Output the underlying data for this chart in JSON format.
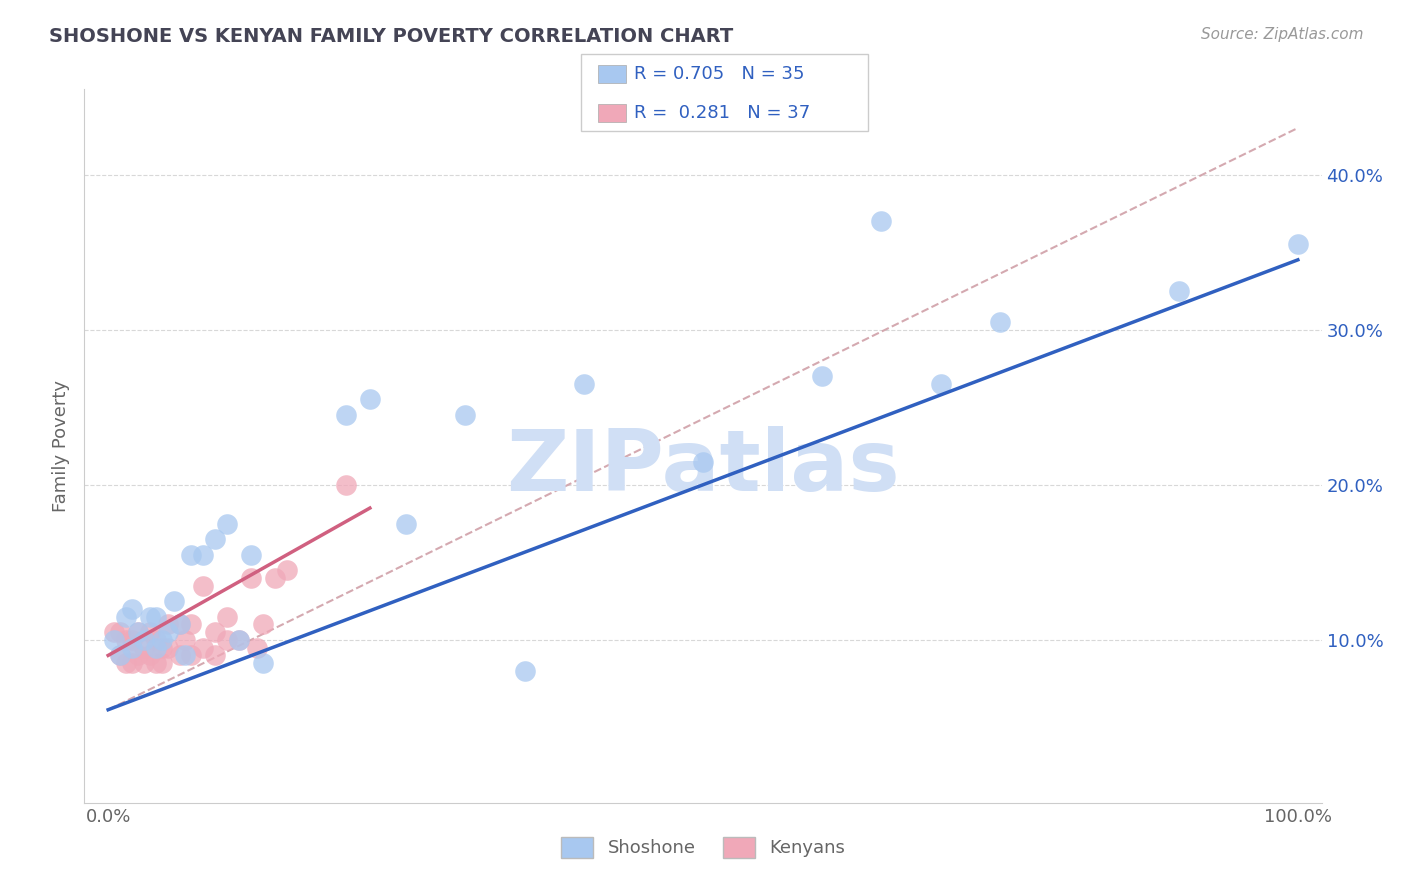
{
  "title": "SHOSHONE VS KENYAN FAMILY POVERTY CORRELATION CHART",
  "source": "Source: ZipAtlas.com",
  "ylabel": "Family Poverty",
  "y_ticks": [
    0.1,
    0.2,
    0.3,
    0.4
  ],
  "y_tick_labels": [
    "10.0%",
    "20.0%",
    "30.0%",
    "40.0%"
  ],
  "x_ticks": [
    0.0,
    1.0
  ],
  "x_tick_labels": [
    "0.0%",
    "100.0%"
  ],
  "xlim": [
    -0.02,
    1.02
  ],
  "ylim": [
    -0.005,
    0.455
  ],
  "shoshone_R": 0.705,
  "shoshone_N": 35,
  "kenyan_R": 0.281,
  "kenyan_N": 37,
  "shoshone_color": "#a8c8f0",
  "kenyan_color": "#f0a8b8",
  "shoshone_line_color": "#3060c0",
  "kenyan_line_color": "#d06080",
  "dashed_line_color": "#d0a0a8",
  "watermark": "ZIPatlas",
  "watermark_color": "#d0dff5",
  "grid_color": "#d8d8d8",
  "shoshone_x": [
    0.005,
    0.01,
    0.015,
    0.02,
    0.02,
    0.025,
    0.03,
    0.035,
    0.04,
    0.04,
    0.045,
    0.05,
    0.055,
    0.06,
    0.065,
    0.07,
    0.08,
    0.09,
    0.1,
    0.11,
    0.12,
    0.13,
    0.2,
    0.22,
    0.25,
    0.3,
    0.35,
    0.4,
    0.5,
    0.6,
    0.65,
    0.7,
    0.75,
    0.9,
    1.0
  ],
  "shoshone_y": [
    0.1,
    0.09,
    0.115,
    0.12,
    0.095,
    0.105,
    0.1,
    0.115,
    0.095,
    0.115,
    0.1,
    0.105,
    0.125,
    0.11,
    0.09,
    0.155,
    0.155,
    0.165,
    0.175,
    0.1,
    0.155,
    0.085,
    0.245,
    0.255,
    0.175,
    0.245,
    0.08,
    0.265,
    0.215,
    0.27,
    0.37,
    0.265,
    0.305,
    0.325,
    0.355
  ],
  "kenyan_x": [
    0.005,
    0.01,
    0.01,
    0.015,
    0.015,
    0.02,
    0.02,
    0.025,
    0.025,
    0.03,
    0.03,
    0.035,
    0.035,
    0.04,
    0.04,
    0.045,
    0.045,
    0.05,
    0.05,
    0.06,
    0.06,
    0.065,
    0.07,
    0.07,
    0.08,
    0.08,
    0.09,
    0.09,
    0.1,
    0.1,
    0.11,
    0.12,
    0.125,
    0.13,
    0.14,
    0.15,
    0.2
  ],
  "kenyan_y": [
    0.105,
    0.105,
    0.09,
    0.1,
    0.085,
    0.1,
    0.085,
    0.105,
    0.09,
    0.095,
    0.085,
    0.105,
    0.09,
    0.1,
    0.085,
    0.095,
    0.085,
    0.11,
    0.095,
    0.11,
    0.09,
    0.1,
    0.11,
    0.09,
    0.095,
    0.135,
    0.105,
    0.09,
    0.115,
    0.1,
    0.1,
    0.14,
    0.095,
    0.11,
    0.14,
    0.145,
    0.2
  ]
}
